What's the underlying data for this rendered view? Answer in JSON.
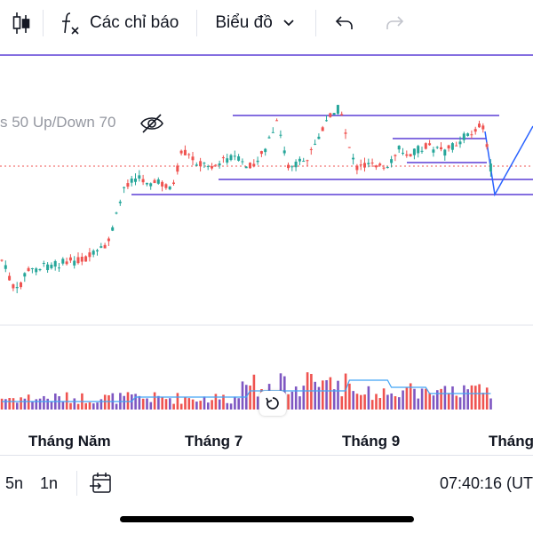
{
  "toolbar": {
    "indicators_label": "Các chỉ báo",
    "chart_type_label": "Biểu đồ",
    "icons": [
      "candles-icon",
      "function-icon",
      "chevron-down-icon",
      "undo-icon",
      "redo-icon"
    ]
  },
  "indicator_legend": "s 50 Up/Down 70",
  "time_axis": {
    "labels": [
      "Tháng Năm",
      "Tháng 7",
      "Tháng 9",
      "Tháng"
    ]
  },
  "bottom_bar": {
    "ranges": [
      "5n",
      "1n"
    ],
    "clock": "07:40:16 (UT"
  },
  "colors": {
    "up": "#26a69a",
    "down": "#ef5350",
    "drawing_line": "#5b3fd6",
    "trend_line": "#2962ff",
    "volume_up": "#7e57c2",
    "volume_down": "#ef5350",
    "volume_ma": "#42a5f5"
  }
}
